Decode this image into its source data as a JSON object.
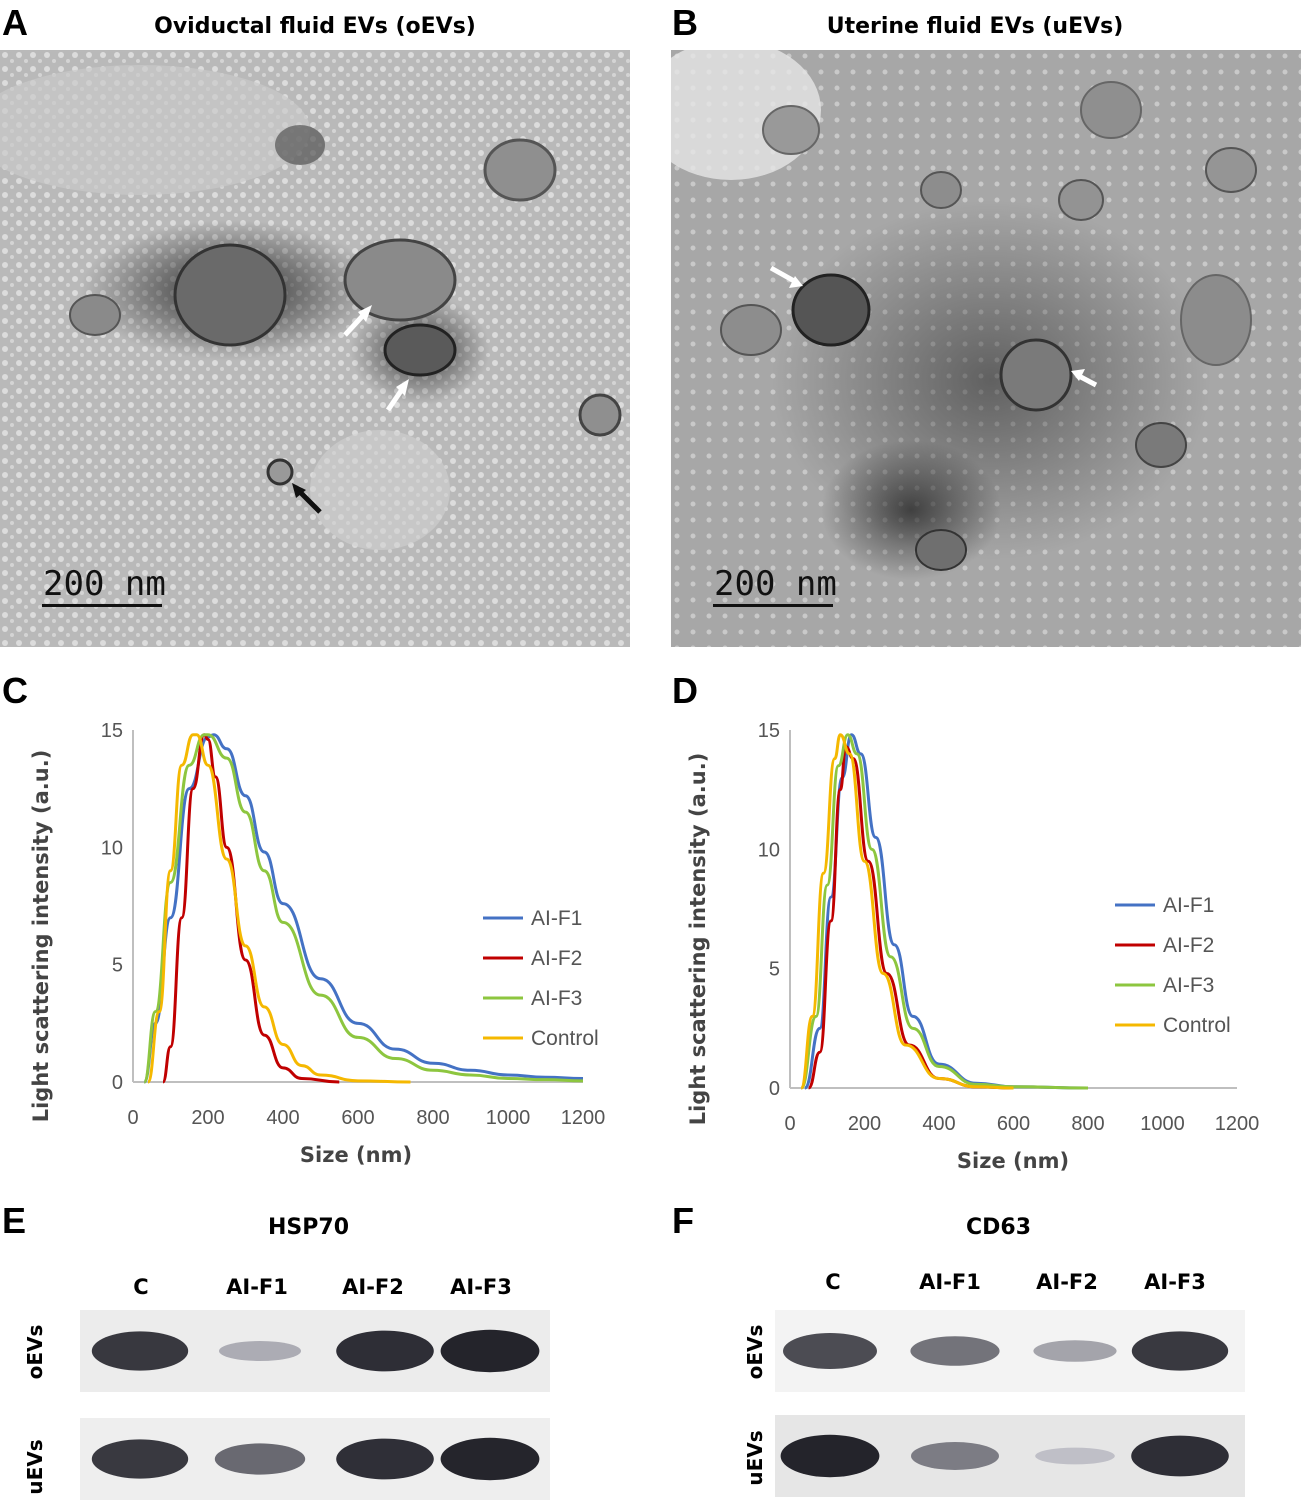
{
  "panels": {
    "A": {
      "letter": "A",
      "title": "Oviductal fluid EVs (oEVs)",
      "scale": "200 nm"
    },
    "B": {
      "letter": "B",
      "title": "Uterine fluid EVs (uEVs)",
      "scale": "200 nm"
    },
    "C": {
      "letter": "C"
    },
    "D": {
      "letter": "D"
    },
    "E": {
      "letter": "E",
      "title": "HSP70",
      "lanes": [
        "C",
        "AI-F1",
        "AI-F2",
        "AI-F3"
      ],
      "rows": [
        "oEVs",
        "uEVs"
      ]
    },
    "F": {
      "letter": "F",
      "title": "CD63",
      "lanes": [
        "C",
        "AI-F1",
        "AI-F2",
        "AI-F3"
      ],
      "rows": [
        "oEVs",
        "uEVs"
      ]
    }
  },
  "colors": {
    "AI-F1": "#4472C4",
    "AI-F2": "#C00000",
    "AI-F3": "#8DC63F",
    "Control": "#F5B800"
  },
  "blot_intensity": {
    "E": {
      "oEVs": [
        0.85,
        0.25,
        0.9,
        0.95
      ],
      "uEVs": [
        0.85,
        0.6,
        0.9,
        0.95
      ]
    },
    "F": {
      "oEVs": [
        0.75,
        0.55,
        0.3,
        0.85
      ],
      "uEVs": [
        0.95,
        0.5,
        0.15,
        0.9
      ]
    }
  },
  "chart_data": [
    {
      "type": "line",
      "panel": "C",
      "xlabel": "Size (nm)",
      "ylabel": "Light scattering intensity (a.u.)",
      "xlim": [
        0,
        1200
      ],
      "ylim": [
        0,
        15
      ],
      "xticks": [
        0,
        200,
        400,
        600,
        800,
        1000,
        1200
      ],
      "yticks": [
        0,
        5,
        10,
        15
      ],
      "legend_position": "right",
      "series": [
        {
          "name": "AI-F1",
          "x": [
            30,
            60,
            100,
            150,
            200,
            215,
            250,
            300,
            350,
            400,
            500,
            600,
            700,
            800,
            900,
            1000,
            1100,
            1200
          ],
          "y": [
            0,
            2.5,
            7,
            12.5,
            14.7,
            14.8,
            14.2,
            12.2,
            9.8,
            7.6,
            4.4,
            2.5,
            1.4,
            0.8,
            0.5,
            0.3,
            0.2,
            0.15
          ]
        },
        {
          "name": "AI-F2",
          "x": [
            80,
            100,
            130,
            160,
            190,
            200,
            220,
            250,
            300,
            350,
            400,
            450,
            550
          ],
          "y": [
            0,
            1.5,
            7,
            12.5,
            14.8,
            14.6,
            13,
            10,
            5.2,
            2,
            0.6,
            0.15,
            0
          ]
        },
        {
          "name": "AI-F3",
          "x": [
            30,
            60,
            100,
            150,
            190,
            200,
            250,
            300,
            350,
            400,
            500,
            600,
            700,
            800,
            900,
            1000,
            1100,
            1200
          ],
          "y": [
            0,
            3,
            8.5,
            13.5,
            14.8,
            14.8,
            13.8,
            11.5,
            9,
            6.8,
            3.7,
            1.9,
            1,
            0.5,
            0.3,
            0.15,
            0.1,
            0.05
          ]
        },
        {
          "name": "Control",
          "x": [
            40,
            70,
            100,
            130,
            160,
            170,
            200,
            250,
            300,
            350,
            400,
            450,
            500,
            600,
            740
          ],
          "y": [
            0,
            3,
            9,
            13.5,
            14.8,
            14.8,
            13.5,
            9.5,
            5.8,
            3.2,
            1.6,
            0.7,
            0.3,
            0.05,
            0
          ]
        }
      ]
    },
    {
      "type": "line",
      "panel": "D",
      "xlabel": "Size (nm)",
      "ylabel": "Light scattering intensity (a.u.)",
      "xlim": [
        0,
        1200
      ],
      "ylim": [
        0,
        15
      ],
      "xticks": [
        0,
        200,
        400,
        600,
        800,
        1000,
        1200
      ],
      "yticks": [
        0,
        5,
        10,
        15
      ],
      "legend_position": "right",
      "series": [
        {
          "name": "AI-F1",
          "x": [
            40,
            80,
            110,
            140,
            165,
            190,
            230,
            280,
            330,
            400,
            500,
            600,
            800
          ],
          "y": [
            0,
            2.5,
            8,
            13,
            14.8,
            14,
            10.5,
            6,
            3,
            1,
            0.2,
            0.05,
            0
          ]
        },
        {
          "name": "AI-F2",
          "x": [
            50,
            80,
            110,
            135,
            150,
            170,
            210,
            260,
            320,
            400,
            500,
            600
          ],
          "y": [
            0,
            1.5,
            7,
            12.5,
            14.3,
            13.8,
            9.5,
            4.8,
            1.8,
            0.4,
            0.05,
            0
          ]
        },
        {
          "name": "AI-F3",
          "x": [
            30,
            70,
            100,
            130,
            155,
            180,
            220,
            270,
            330,
            400,
            500,
            600,
            800
          ],
          "y": [
            0,
            3,
            8.5,
            13.5,
            14.8,
            14,
            10,
            5.5,
            2.5,
            0.9,
            0.15,
            0.05,
            0
          ]
        },
        {
          "name": "Control",
          "x": [
            30,
            60,
            90,
            120,
            135,
            160,
            200,
            250,
            310,
            400,
            500,
            600
          ],
          "y": [
            0,
            3,
            9,
            13.8,
            14.8,
            14,
            9.5,
            4.8,
            1.8,
            0.4,
            0.05,
            0
          ]
        }
      ]
    }
  ]
}
